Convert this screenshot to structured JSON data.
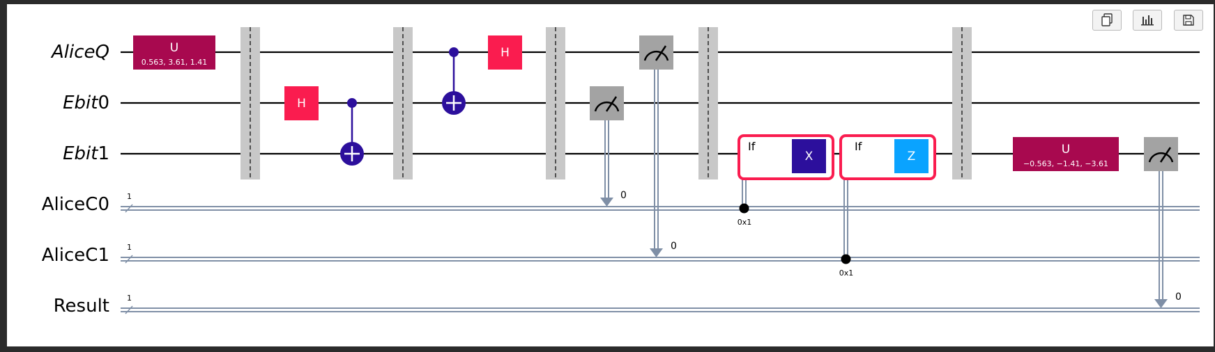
{
  "toolbar": [
    {
      "name": "copy-button",
      "icon": "copy-icon"
    },
    {
      "name": "chart-button",
      "icon": "bar-chart-icon"
    },
    {
      "name": "save-button",
      "icon": "save-icon"
    }
  ],
  "wires": {
    "quantum": [
      {
        "id": "AliceQ",
        "label_main": "AliceQ",
        "label_sub": ""
      },
      {
        "id": "Ebit0",
        "label_main": "Ebit",
        "label_sub": "0"
      },
      {
        "id": "Ebit1",
        "label_main": "Ebit",
        "label_sub": "1"
      }
    ],
    "classical": [
      {
        "id": "AliceC0",
        "label": "AliceC0",
        "width": "1"
      },
      {
        "id": "AliceC1",
        "label": "AliceC1",
        "width": "1"
      },
      {
        "id": "Result",
        "label": "Result",
        "width": "1"
      }
    ]
  },
  "gates": {
    "u1": {
      "label": "U",
      "params": "0.563, 3.61, 1.41"
    },
    "h_ebit0": {
      "label": "H"
    },
    "h_aliceq": {
      "label": "H"
    },
    "if_x": {
      "label": "If",
      "gate": "X",
      "condition": "0x1"
    },
    "if_z": {
      "label": "If",
      "gate": "Z",
      "condition": "0x1"
    },
    "u2": {
      "label": "U",
      "params": "−0.563, −1.41, −3.61"
    },
    "meas_ebit0_bit": "0",
    "meas_aliceq_bit": "0",
    "meas_result_bit": "0"
  },
  "colors": {
    "u_gate": "#a8094f",
    "h_gate": "#fa1c4f",
    "cnot": "#2c0f9c",
    "measure": "#a3a3a3",
    "barrier": "#c8c8c8",
    "classical_wire": "#7f8fa6",
    "if_box": "#fa1c4f",
    "x_gate": "#2c0f9c",
    "z_gate": "#0aa3ff"
  }
}
